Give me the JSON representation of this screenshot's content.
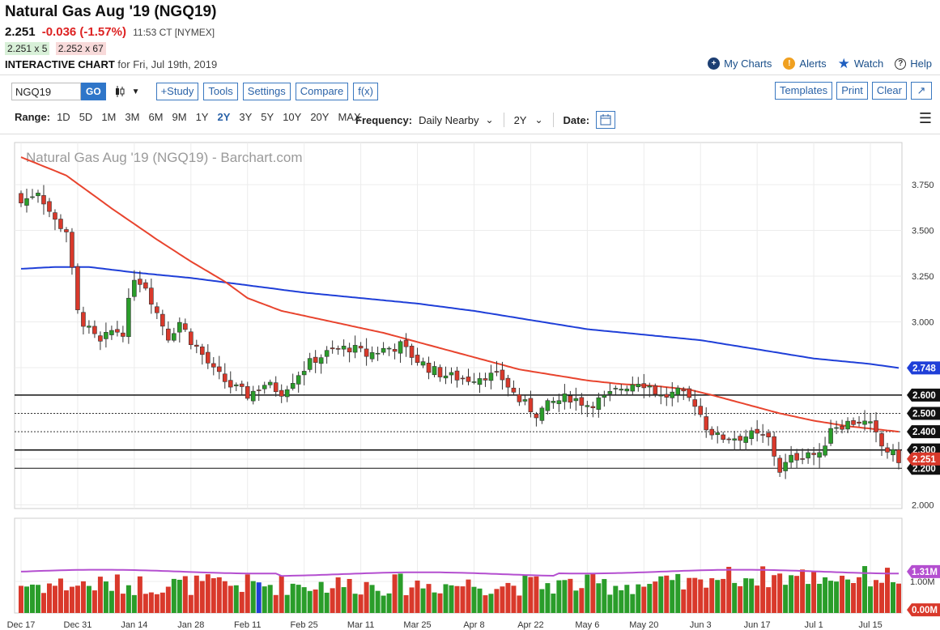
{
  "header": {
    "title": "Natural Gas Aug '19 (NGQ19)",
    "last": "2.251",
    "change": "-0.036 (-1.57%)",
    "time": "11:53 CT [NYMEX]",
    "bid": "2.251 x 5",
    "ask": "2.252 x 67",
    "ic_label": "INTERACTIVE CHART",
    "ic_date": "for Fri, Jul 19th, 2019"
  },
  "toplinks": {
    "mycharts": "My Charts",
    "alerts": "Alerts",
    "watch": "Watch",
    "help": "Help"
  },
  "toolbar": {
    "symbol": "NGQ19",
    "go": "GO",
    "study": "+Study",
    "tools": "Tools",
    "settings": "Settings",
    "compare": "Compare",
    "fx": "f(x)",
    "templates": "Templates",
    "print": "Print",
    "clear": "Clear"
  },
  "rangebar": {
    "label": "Range:",
    "options": [
      "1D",
      "5D",
      "1M",
      "3M",
      "6M",
      "9M",
      "1Y",
      "2Y",
      "3Y",
      "5Y",
      "10Y",
      "20Y",
      "MAX"
    ],
    "selected": "2Y",
    "freq_label": "Frequency:",
    "freq_value": "Daily Nearby",
    "period_value": "2Y",
    "date_label": "Date:"
  },
  "colors": {
    "up": "#2a9d2a",
    "down": "#d9392b",
    "ma50": "#e8442e",
    "ma200": "#1f3fd8",
    "vol_avg": "#b44fd0",
    "price_tag": "#111111",
    "ma200_tag": "#1f3fd8",
    "vol_tag": "#b44fd0",
    "vol_zero_tag": "#d9392b"
  },
  "chart_data": {
    "type": "candlestick",
    "title": "Natural Gas Aug '19 (NGQ19) - Barchart.com",
    "y_ticks": [
      "3.750",
      "3.500",
      "3.250",
      "3.000",
      "2.750",
      "2.500",
      "2.250",
      "2.000"
    ],
    "y_tick_values": [
      3.75,
      3.5,
      3.25,
      3.0,
      2.75,
      2.5,
      2.25,
      2.0
    ],
    "ylim": [
      1.98,
      3.98
    ],
    "x_ticks": [
      "Dec 17",
      "Dec 31",
      "Jan 14",
      "Jan 28",
      "Feb 11",
      "Feb 25",
      "Mar 11",
      "Mar 25",
      "Apr 8",
      "Apr 22",
      "May 6",
      "May 20",
      "Jun 3",
      "Jun 17",
      "Jul 1",
      "Jul 15"
    ],
    "x_tick_index": [
      0,
      10,
      20,
      30,
      40,
      50,
      60,
      70,
      80,
      90,
      100,
      110,
      120,
      130,
      140,
      150
    ],
    "n_bars": 156,
    "anchors": [
      [
        0,
        3.65
      ],
      [
        3,
        3.72
      ],
      [
        6,
        3.55
      ],
      [
        8,
        3.5
      ],
      [
        10,
        3.05
      ],
      [
        12,
        2.95
      ],
      [
        14,
        2.88
      ],
      [
        16,
        2.95
      ],
      [
        18,
        2.95
      ],
      [
        20,
        3.25
      ],
      [
        22,
        3.2
      ],
      [
        24,
        3.05
      ],
      [
        26,
        2.92
      ],
      [
        28,
        3.0
      ],
      [
        30,
        2.9
      ],
      [
        32,
        2.82
      ],
      [
        34,
        2.73
      ],
      [
        37,
        2.65
      ],
      [
        40,
        2.6
      ],
      [
        43,
        2.66
      ],
      [
        46,
        2.62
      ],
      [
        49,
        2.72
      ],
      [
        52,
        2.8
      ],
      [
        55,
        2.84
      ],
      [
        58,
        2.86
      ],
      [
        61,
        2.82
      ],
      [
        64,
        2.85
      ],
      [
        67,
        2.87
      ],
      [
        70,
        2.79
      ],
      [
        73,
        2.73
      ],
      [
        76,
        2.7
      ],
      [
        79,
        2.69
      ],
      [
        82,
        2.71
      ],
      [
        85,
        2.69
      ],
      [
        88,
        2.57
      ],
      [
        91,
        2.5
      ],
      [
        94,
        2.56
      ],
      [
        97,
        2.59
      ],
      [
        100,
        2.55
      ],
      [
        103,
        2.58
      ],
      [
        106,
        2.64
      ],
      [
        109,
        2.68
      ],
      [
        111,
        2.65
      ],
      [
        113,
        2.59
      ],
      [
        116,
        2.61
      ],
      [
        119,
        2.56
      ],
      [
        121,
        2.43
      ],
      [
        123,
        2.37
      ],
      [
        126,
        2.37
      ],
      [
        129,
        2.38
      ],
      [
        132,
        2.36
      ],
      [
        134,
        2.19
      ],
      [
        136,
        2.25
      ],
      [
        139,
        2.29
      ],
      [
        141,
        2.26
      ],
      [
        143,
        2.43
      ],
      [
        145,
        2.44
      ],
      [
        148,
        2.46
      ],
      [
        150,
        2.43
      ],
      [
        152,
        2.32
      ],
      [
        155,
        2.251
      ]
    ],
    "ma50": [
      [
        0,
        3.9
      ],
      [
        8,
        3.8
      ],
      [
        16,
        3.62
      ],
      [
        24,
        3.45
      ],
      [
        30,
        3.33
      ],
      [
        36,
        3.22
      ],
      [
        40,
        3.13
      ],
      [
        46,
        3.06
      ],
      [
        52,
        3.02
      ],
      [
        58,
        2.98
      ],
      [
        64,
        2.94
      ],
      [
        70,
        2.89
      ],
      [
        76,
        2.84
      ],
      [
        82,
        2.79
      ],
      [
        88,
        2.74
      ],
      [
        94,
        2.71
      ],
      [
        100,
        2.68
      ],
      [
        106,
        2.66
      ],
      [
        112,
        2.65
      ],
      [
        118,
        2.63
      ],
      [
        122,
        2.6
      ],
      [
        128,
        2.55
      ],
      [
        134,
        2.5
      ],
      [
        140,
        2.46
      ],
      [
        146,
        2.43
      ],
      [
        152,
        2.41
      ],
      [
        155,
        2.4
      ]
    ],
    "ma200": [
      [
        0,
        3.29
      ],
      [
        6,
        3.3
      ],
      [
        12,
        3.3
      ],
      [
        20,
        3.27
      ],
      [
        30,
        3.24
      ],
      [
        40,
        3.2
      ],
      [
        50,
        3.16
      ],
      [
        60,
        3.13
      ],
      [
        70,
        3.1
      ],
      [
        80,
        3.06
      ],
      [
        90,
        3.01
      ],
      [
        100,
        2.96
      ],
      [
        110,
        2.93
      ],
      [
        120,
        2.9
      ],
      [
        130,
        2.85
      ],
      [
        140,
        2.8
      ],
      [
        150,
        2.77
      ],
      [
        155,
        2.748
      ]
    ],
    "h_lines_solid": [
      2.6,
      2.3,
      2.2
    ],
    "h_lines_dotted": [
      2.5,
      2.4
    ],
    "level_labels": [
      "2.600",
      "2.500",
      "2.400",
      "2.300",
      "2.200"
    ],
    "level_values": [
      2.6,
      2.5,
      2.4,
      2.3,
      2.2
    ],
    "ma200_last_label": "2.748",
    "ma200_last_value": 2.748,
    "last_price": 2.251,
    "last_price_label": "2.251",
    "volume": {
      "ticks": [
        "1.00M"
      ],
      "tick_values": [
        1.0
      ],
      "ylim": [
        0,
        3.0
      ],
      "avg_label": "1.31M",
      "avg_value": 1.31,
      "zero_label": "0.00M",
      "highlight_bar_index": 42,
      "highlight_color": "#1f3fd8"
    }
  }
}
